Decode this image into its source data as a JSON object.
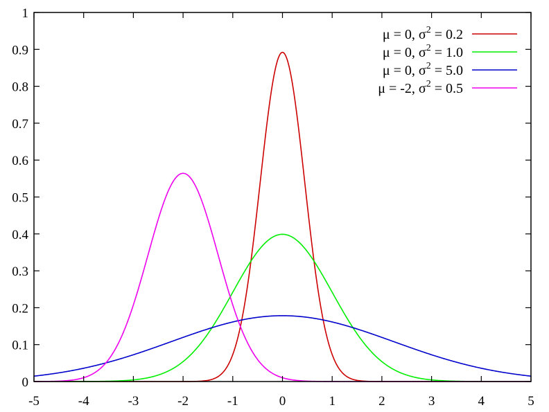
{
  "chart_data": {
    "type": "line",
    "title": "",
    "xlabel": "",
    "ylabel": "",
    "xlim": [
      -5,
      5
    ],
    "ylim": [
      0,
      1
    ],
    "xticks": [
      "-5",
      "-4",
      "-3",
      "-2",
      "-1",
      "0",
      "1",
      "2",
      "3",
      "4",
      "5"
    ],
    "yticks": [
      "0",
      "0.1",
      "0.2",
      "0.3",
      "0.4",
      "0.5",
      "0.6",
      "0.7",
      "0.8",
      "0.9",
      "1"
    ],
    "grid": false,
    "legend_position": "top-right",
    "series": [
      {
        "name_prefix": "μ =  0, σ",
        "name_sup": "2",
        "name_suffix": " = 0.2",
        "mu": 0,
        "variance": 0.2,
        "color": "#cc0000"
      },
      {
        "name_prefix": "μ =  0, σ",
        "name_sup": "2",
        "name_suffix": " = 1.0",
        "mu": 0,
        "variance": 1.0,
        "color": "#00ee00"
      },
      {
        "name_prefix": "μ =  0, σ",
        "name_sup": "2",
        "name_suffix": " = 5.0",
        "mu": 0,
        "variance": 5.0,
        "color": "#0000cc"
      },
      {
        "name_prefix": "μ = -2, σ",
        "name_sup": "2",
        "name_suffix": " = 0.5",
        "mu": -2,
        "variance": 0.5,
        "color": "#ee00ee"
      }
    ]
  }
}
